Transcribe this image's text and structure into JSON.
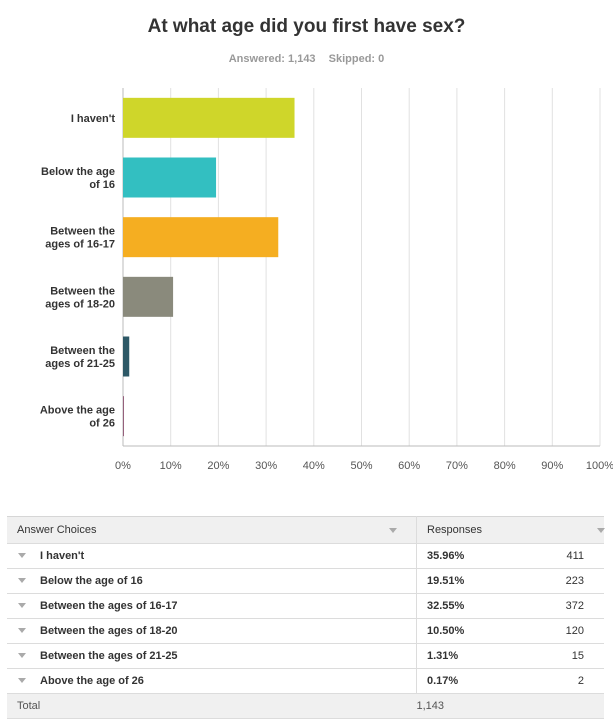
{
  "header": {
    "title": "At what age did you first have sex?",
    "answered": "Answered: 1,143",
    "skipped": "Skipped: 0"
  },
  "chart_data": {
    "type": "bar",
    "orientation": "horizontal",
    "categories": [
      [
        "I haven't"
      ],
      [
        "Below the age",
        "of 16"
      ],
      [
        "Between the",
        "ages of 16-17"
      ],
      [
        "Between the",
        "ages of 18-20"
      ],
      [
        "Between the",
        "ages of 21-25"
      ],
      [
        "Above the age",
        "of 26"
      ]
    ],
    "values": [
      35.96,
      19.51,
      32.55,
      10.5,
      1.31,
      0.17
    ],
    "colors": [
      "#cfd62a",
      "#33bfc1",
      "#f5ae21",
      "#8a8a7c",
      "#2d5866",
      "#7d3b5e"
    ],
    "xticks": [
      "0%",
      "10%",
      "20%",
      "30%",
      "40%",
      "50%",
      "60%",
      "70%",
      "80%",
      "90%",
      "100%"
    ],
    "xlim": [
      0,
      100
    ],
    "grid": true
  },
  "table": {
    "headers": [
      "Answer Choices",
      "Responses"
    ],
    "rows": [
      {
        "choice": "I haven't",
        "percent": "35.96%",
        "count": "411"
      },
      {
        "choice": "Below the age of 16",
        "percent": "19.51%",
        "count": "223"
      },
      {
        "choice": "Between the ages of 16-17",
        "percent": "32.55%",
        "count": "372"
      },
      {
        "choice": "Between the ages of 18-20",
        "percent": "10.50%",
        "count": "120"
      },
      {
        "choice": "Between the ages of 21-25",
        "percent": "1.31%",
        "count": "15"
      },
      {
        "choice": "Above the age of 26",
        "percent": "0.17%",
        "count": "2"
      }
    ],
    "total_label": "Total",
    "total_value": "1,143"
  }
}
